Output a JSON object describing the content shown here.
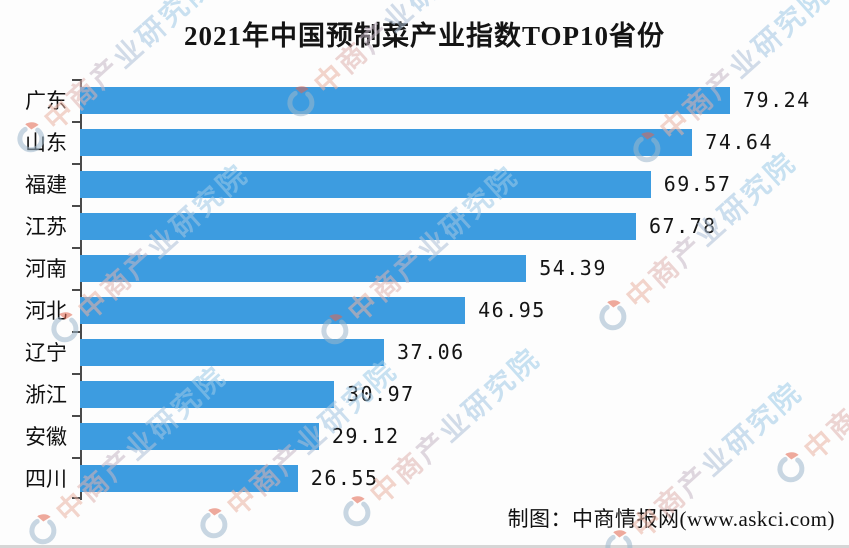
{
  "title": "2021年中国预制菜产业指数TOP10省份",
  "footer": {
    "credit": "制图：中商情报网(www.askci.com)"
  },
  "watermark": {
    "text": "中商产业研究院",
    "logo": "askci-crescent-logo",
    "char_colors": [
      "#eab3a4",
      "#dfb3b0",
      "#c6b8c6",
      "#aec1d8",
      "#a4c6e2",
      "#9fc9e7",
      "#9ccbe9"
    ],
    "logo_crescent_color": "#9db8cc",
    "logo_accent_color": "#e2654d"
  },
  "colors": {
    "bar": "#3D9CE0",
    "axis": "#4a4a4a",
    "title_text": "#141414",
    "label_text": "#111111"
  },
  "chart_data": {
    "type": "bar",
    "orientation": "horizontal",
    "title": "2021年中国预制菜产业指数TOP10省份",
    "categories": [
      "广东",
      "山东",
      "福建",
      "江苏",
      "河南",
      "河北",
      "辽宁",
      "浙江",
      "安徽",
      "四川"
    ],
    "values": [
      79.24,
      74.64,
      69.57,
      67.78,
      54.39,
      46.95,
      37.06,
      30.97,
      29.12,
      26.55
    ],
    "value_labels": [
      "79.24",
      "74.64",
      "69.57",
      "67.78",
      "54.39",
      "46.95",
      "37.06",
      "30.97",
      "29.12",
      "26.55"
    ],
    "xlabel": "",
    "ylabel": "",
    "xlim": [
      0,
      83
    ],
    "grid": false,
    "legend": false,
    "value_labels_shown": true,
    "source_note": "制图：中商情报网(www.askci.com)"
  }
}
